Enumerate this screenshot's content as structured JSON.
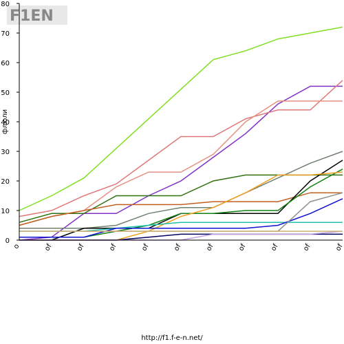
{
  "logo": "F1EN",
  "footer": "http://f1.f-e-n.net/",
  "chart_data": {
    "type": "line",
    "y_label": "флюли",
    "categories": [
      "o",
      "of",
      "of",
      "of",
      "of",
      "of",
      "of",
      "of",
      "of",
      "of",
      "of"
    ],
    "ylim": [
      0,
      80
    ],
    "yticks": [
      0,
      10,
      20,
      30,
      40,
      50,
      60,
      70,
      80
    ],
    "grid": false,
    "series": [
      {
        "color": "#80e020",
        "values": [
          10,
          15,
          21,
          31,
          41,
          51,
          61,
          64,
          68,
          70,
          72
        ]
      },
      {
        "color": "#8030c8",
        "values": [
          0,
          1,
          9,
          9,
          15,
          20,
          28,
          36,
          46,
          52,
          52
        ]
      },
      {
        "color": "#e07878",
        "values": [
          8,
          10,
          15,
          19,
          27,
          35,
          35,
          41,
          44,
          44,
          54
        ]
      },
      {
        "color": "#e89080",
        "values": [
          5,
          8,
          10,
          18,
          23,
          23,
          29,
          40,
          47,
          47,
          47
        ]
      },
      {
        "color": "#2e7010",
        "values": [
          6,
          9,
          9,
          15,
          15,
          15,
          20,
          22,
          22,
          22,
          22
        ]
      },
      {
        "color": "#708070",
        "values": [
          4,
          4,
          4,
          5,
          9,
          11,
          11,
          16,
          21,
          26,
          30
        ]
      },
      {
        "color": "#c06020",
        "values": [
          5,
          8,
          10,
          12,
          12,
          12,
          13,
          13,
          13,
          16,
          16
        ]
      },
      {
        "color": "#000000",
        "values": [
          0,
          0,
          4,
          4,
          4,
          9,
          9,
          9,
          9,
          20,
          27
        ]
      },
      {
        "color": "#108010",
        "values": [
          1,
          1,
          1,
          3,
          5,
          9,
          9,
          10,
          10,
          18,
          24
        ]
      },
      {
        "color": "#f0a020",
        "values": [
          0,
          0,
          0,
          0,
          3,
          8,
          11,
          16,
          22,
          22,
          23
        ]
      },
      {
        "color": "#20c0b0",
        "values": [
          3,
          3,
          3,
          4,
          5,
          6,
          6,
          6,
          6,
          6,
          6
        ]
      },
      {
        "color": "#1010d0",
        "values": [
          1,
          1,
          1,
          4,
          4,
          4,
          4,
          4,
          5,
          9,
          14
        ]
      },
      {
        "color": "#909090",
        "values": [
          3,
          3,
          3,
          3,
          3,
          3,
          3,
          3,
          3,
          13,
          16
        ]
      },
      {
        "color": "#000060",
        "values": [
          0,
          0,
          0,
          0,
          1,
          2,
          2,
          2,
          2,
          2,
          2
        ]
      },
      {
        "color": "#c0a0e0",
        "values": [
          0,
          0,
          0,
          0,
          0,
          0,
          2,
          2,
          2,
          2,
          3
        ]
      },
      {
        "color": "#d0b070",
        "values": [
          3,
          3,
          3,
          3,
          3,
          3,
          3,
          3,
          3,
          3,
          3
        ]
      }
    ]
  }
}
